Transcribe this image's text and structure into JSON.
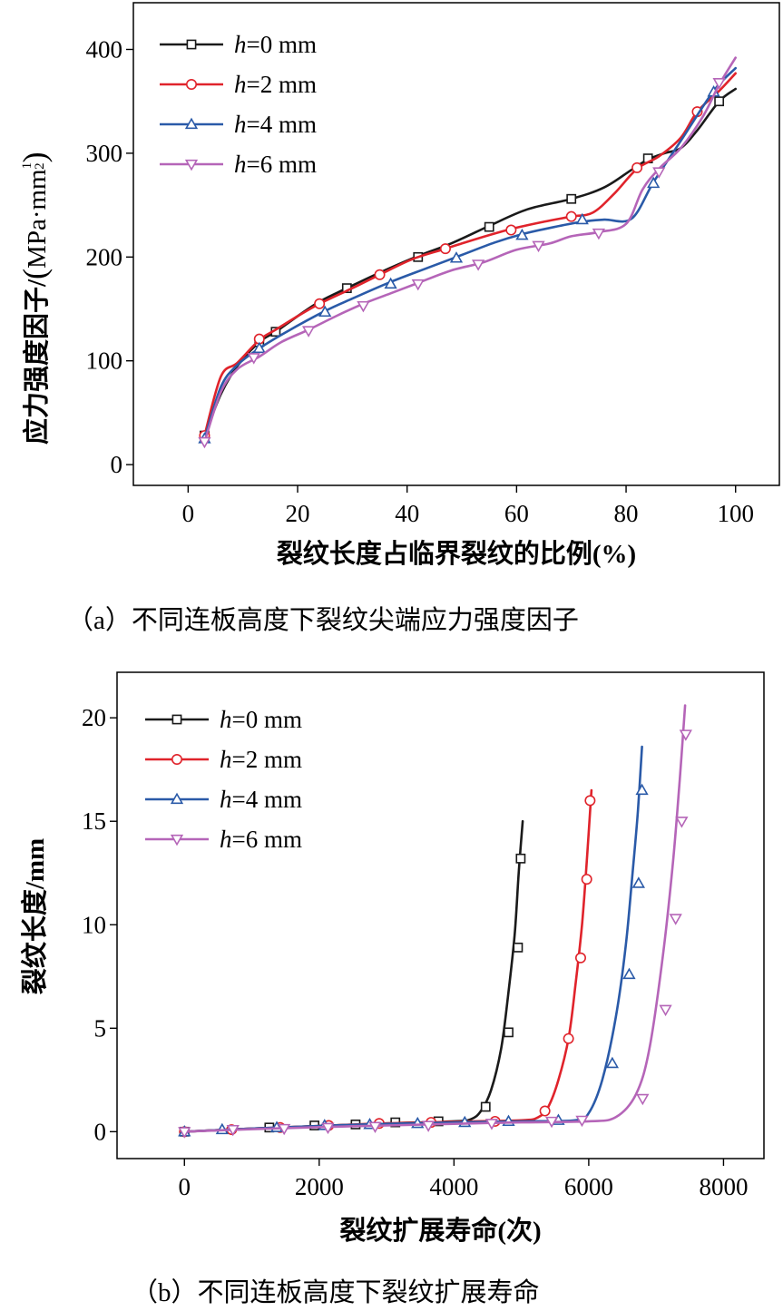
{
  "chart_data": [
    {
      "type": "line",
      "xlabel": "裂纹长度占临界裂纹的比例(%)",
      "ylabel": "应力强度因子/",
      "ylabel_unit": "MPa·mm",
      "ylabel_exp_num": "1",
      "ylabel_exp_den": "2",
      "caption": "（a）不同连板高度下裂纹尖端应力强度因子",
      "xlim": [
        -10,
        108
      ],
      "ylim": [
        -20,
        445
      ],
      "xticks": [
        "0",
        "20",
        "40",
        "60",
        "80",
        "100"
      ],
      "yticks": [
        "0",
        "100",
        "200",
        "300",
        "400"
      ],
      "legend_position": "top-left",
      "series": [
        {
          "name": "h=0 mm",
          "h": "h",
          "rest": "=0 mm",
          "color": "#1a1a1a",
          "marker": "square",
          "x": [
            3,
            6,
            9,
            13,
            16,
            20,
            24,
            29,
            35,
            42,
            48,
            55,
            62,
            70,
            76,
            81,
            84,
            87,
            90,
            93,
            97,
            100
          ],
          "y": [
            28,
            68,
            95,
            118,
            128,
            143,
            157,
            170,
            185,
            201,
            213,
            230,
            246,
            256,
            267,
            284,
            294,
            300,
            305,
            322,
            350,
            362
          ],
          "markers": [
            [
              3,
              28
            ],
            [
              13,
              118
            ],
            [
              16,
              128
            ],
            [
              29,
              170
            ],
            [
              42,
              200
            ],
            [
              55,
              229
            ],
            [
              70,
              256
            ],
            [
              84,
              295
            ],
            [
              97,
              350
            ]
          ]
        },
        {
          "name": "h=2 mm",
          "h": "h",
          "rest": "=2 mm",
          "color": "#e0232b",
          "marker": "circle",
          "x": [
            3,
            6,
            9,
            13,
            16,
            20,
            24,
            30,
            35,
            41,
            47,
            53,
            59,
            65,
            70,
            74,
            78,
            82,
            86,
            90,
            93,
            97,
            100
          ],
          "y": [
            28,
            85,
            98,
            120,
            130,
            143,
            155,
            170,
            183,
            198,
            208,
            218,
            227,
            234,
            239,
            243,
            262,
            285,
            297,
            315,
            340,
            360,
            377
          ],
          "markers": [
            [
              3,
              28
            ],
            [
              13,
              121
            ],
            [
              24,
              155
            ],
            [
              35,
              183
            ],
            [
              47,
              208
            ],
            [
              59,
              226
            ],
            [
              70,
              239
            ],
            [
              82,
              286
            ],
            [
              93,
              340
            ]
          ]
        },
        {
          "name": "h=4 mm",
          "h": "h",
          "rest": "=4 mm",
          "color": "#2a5aa8",
          "marker": "triangle-up",
          "x": [
            3,
            6,
            9,
            13,
            18,
            25,
            30,
            37,
            44,
            50,
            56,
            61,
            66,
            72,
            76,
            81,
            85,
            90,
            96,
            100
          ],
          "y": [
            25,
            75,
            96,
            112,
            128,
            148,
            160,
            176,
            190,
            202,
            214,
            222,
            228,
            234,
            236,
            237,
            272,
            312,
            360,
            382
          ],
          "markers": [
            [
              3,
              25
            ],
            [
              13,
              112
            ],
            [
              25,
              147
            ],
            [
              37,
              174
            ],
            [
              49,
              199
            ],
            [
              61,
              221
            ],
            [
              72,
              236
            ],
            [
              85,
              271
            ],
            [
              96,
              359
            ]
          ]
        },
        {
          "name": "h=6 mm",
          "h": "h",
          "rest": "=6 mm",
          "color": "#b565b8",
          "marker": "triangle-down",
          "x": [
            3,
            6,
            9,
            13,
            17,
            22,
            27,
            32,
            37,
            42,
            48,
            54,
            60,
            66,
            70,
            75,
            80,
            83,
            86,
            90,
            94,
            97,
            100
          ],
          "y": [
            22,
            70,
            92,
            104,
            118,
            130,
            143,
            155,
            165,
            175,
            187,
            195,
            207,
            213,
            220,
            224,
            232,
            265,
            285,
            305,
            335,
            366,
            392
          ],
          "markers": [
            [
              3,
              22
            ],
            [
              12,
              103
            ],
            [
              22,
              129
            ],
            [
              32,
              153
            ],
            [
              42,
              174
            ],
            [
              53,
              193
            ],
            [
              64,
              211
            ],
            [
              75,
              223
            ],
            [
              86,
              282
            ],
            [
              97,
              368
            ]
          ]
        }
      ]
    },
    {
      "type": "line",
      "xlabel": "裂纹扩展寿命(次)",
      "ylabel": "裂纹长度/mm",
      "caption": "（b）不同连板高度下裂纹扩展寿命",
      "xlim": [
        -1000,
        8600
      ],
      "ylim": [
        -1.3,
        22.2
      ],
      "xticks": [
        "0",
        "2000",
        "4000",
        "6000",
        "8000"
      ],
      "yticks": [
        "0",
        "5",
        "10",
        "15",
        "20"
      ],
      "legend_position": "top-left",
      "series": [
        {
          "name": "h=0 mm",
          "h": "h",
          "rest": "=0 mm",
          "color": "#1a1a1a",
          "marker": "square",
          "x": [
            0,
            1000,
            2000,
            3000,
            4000,
            4250,
            4400,
            4550,
            4700,
            4800,
            4900,
            4960,
            5020
          ],
          "y": [
            0,
            0.15,
            0.28,
            0.4,
            0.5,
            0.6,
            1.0,
            2.0,
            4.0,
            6.5,
            9.5,
            12.5,
            15.0
          ],
          "markers": [
            [
              0,
              0
            ],
            [
              1260,
              0.2
            ],
            [
              1930,
              0.3
            ],
            [
              2540,
              0.35
            ],
            [
              3130,
              0.45
            ],
            [
              3770,
              0.5
            ],
            [
              4470,
              1.2
            ],
            [
              4810,
              4.8
            ],
            [
              4950,
              8.9
            ],
            [
              4990,
              13.2
            ]
          ]
        },
        {
          "name": "h=2 mm",
          "h": "h",
          "rest": "=2 mm",
          "color": "#e0232b",
          "marker": "circle",
          "x": [
            0,
            1000,
            2000,
            3000,
            4000,
            5000,
            5250,
            5400,
            5550,
            5700,
            5800,
            5900,
            5980,
            6040
          ],
          "y": [
            0,
            0.15,
            0.28,
            0.4,
            0.48,
            0.55,
            0.7,
            1.2,
            2.5,
            4.5,
            7.0,
            10.0,
            13.5,
            16.5
          ],
          "markers": [
            [
              0,
              0
            ],
            [
              700,
              0.1
            ],
            [
              1420,
              0.2
            ],
            [
              2140,
              0.3
            ],
            [
              2890,
              0.4
            ],
            [
              3660,
              0.45
            ],
            [
              4610,
              0.5
            ],
            [
              5350,
              1.0
            ],
            [
              5700,
              4.5
            ],
            [
              5880,
              8.4
            ],
            [
              5970,
              12.2
            ],
            [
              6020,
              16.0
            ]
          ]
        },
        {
          "name": "h=4 mm",
          "h": "h",
          "rest": "=4 mm",
          "color": "#2a5aa8",
          "marker": "triangle-up",
          "x": [
            0,
            1000,
            2000,
            3000,
            4000,
            5000,
            5800,
            6000,
            6200,
            6400,
            6550,
            6650,
            6730,
            6790
          ],
          "y": [
            0,
            0.15,
            0.28,
            0.38,
            0.45,
            0.5,
            0.55,
            0.9,
            2.5,
            5.5,
            9.0,
            12.5,
            15.5,
            18.6
          ],
          "markers": [
            [
              0,
              0
            ],
            [
              560,
              0.1
            ],
            [
              1370,
              0.2
            ],
            [
              2080,
              0.3
            ],
            [
              2750,
              0.35
            ],
            [
              3460,
              0.4
            ],
            [
              4160,
              0.45
            ],
            [
              4810,
              0.5
            ],
            [
              5550,
              0.55
            ],
            [
              6350,
              3.3
            ],
            [
              6600,
              7.6
            ],
            [
              6740,
              12.0
            ],
            [
              6790,
              16.5
            ]
          ]
        },
        {
          "name": "h=6 mm",
          "h": "h",
          "rest": "=6 mm",
          "color": "#b565b8",
          "marker": "triangle-down",
          "x": [
            0,
            1000,
            2000,
            3000,
            4000,
            5000,
            6000,
            6400,
            6700,
            6900,
            7100,
            7250,
            7350,
            7430
          ],
          "y": [
            0,
            0.12,
            0.22,
            0.3,
            0.38,
            0.45,
            0.5,
            0.7,
            1.8,
            4.0,
            8.5,
            13.0,
            17.0,
            20.6
          ],
          "markers": [
            [
              0,
              0
            ],
            [
              720,
              0.1
            ],
            [
              1480,
              0.15
            ],
            [
              2130,
              0.2
            ],
            [
              2830,
              0.25
            ],
            [
              3620,
              0.3
            ],
            [
              4560,
              0.4
            ],
            [
              5450,
              0.5
            ],
            [
              5900,
              0.55
            ],
            [
              6800,
              1.6
            ],
            [
              7140,
              5.9
            ],
            [
              7290,
              10.3
            ],
            [
              7380,
              15.0
            ],
            [
              7440,
              19.2
            ]
          ]
        }
      ]
    }
  ]
}
